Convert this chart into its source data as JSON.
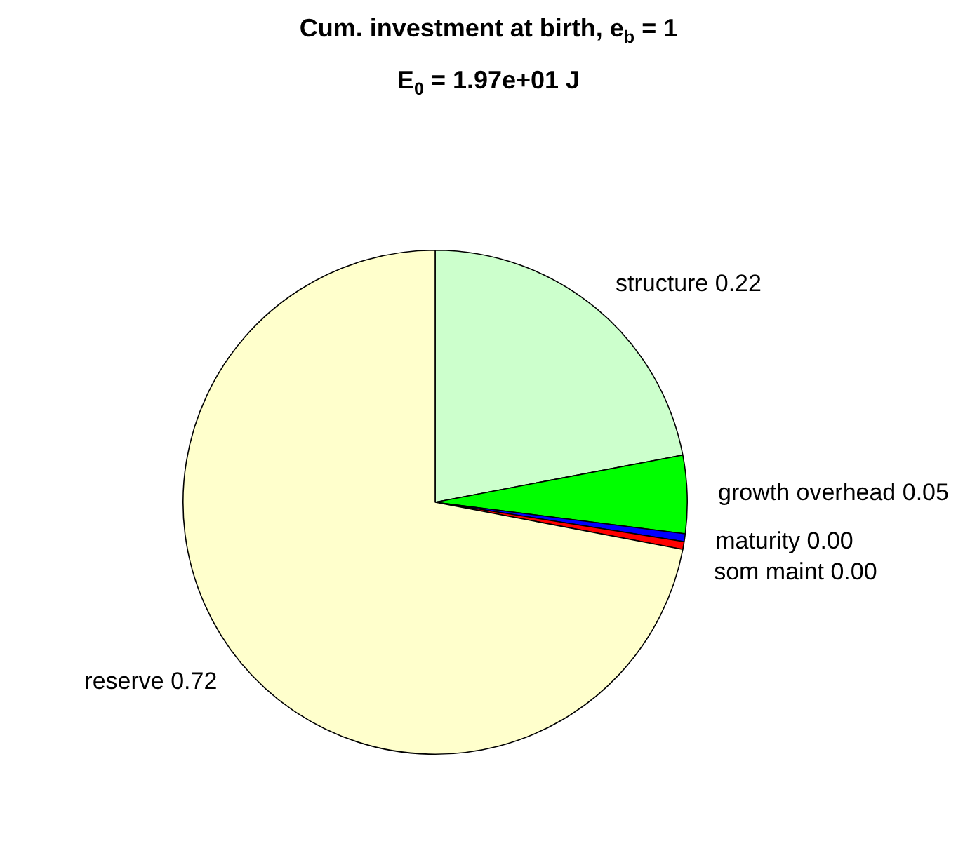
{
  "chart_data": {
    "type": "pie",
    "title": "Cum. investment at birth, e$_{b}$ = 1",
    "subtitle": "E$_{0}$ = 1.97e+01 J",
    "categories": [
      "structure",
      "growth overhead",
      "maturity",
      "som maint",
      "reserve"
    ],
    "values": [
      0.22,
      0.05,
      0.005,
      0.005,
      0.72
    ],
    "value_labels": [
      "0.22",
      "0.05",
      "0.00",
      "0.00",
      "0.72"
    ],
    "colors": [
      "#ccffcc",
      "#00ff00",
      "#0000ff",
      "#ff0000",
      "#ffffcc"
    ],
    "legend": false
  }
}
